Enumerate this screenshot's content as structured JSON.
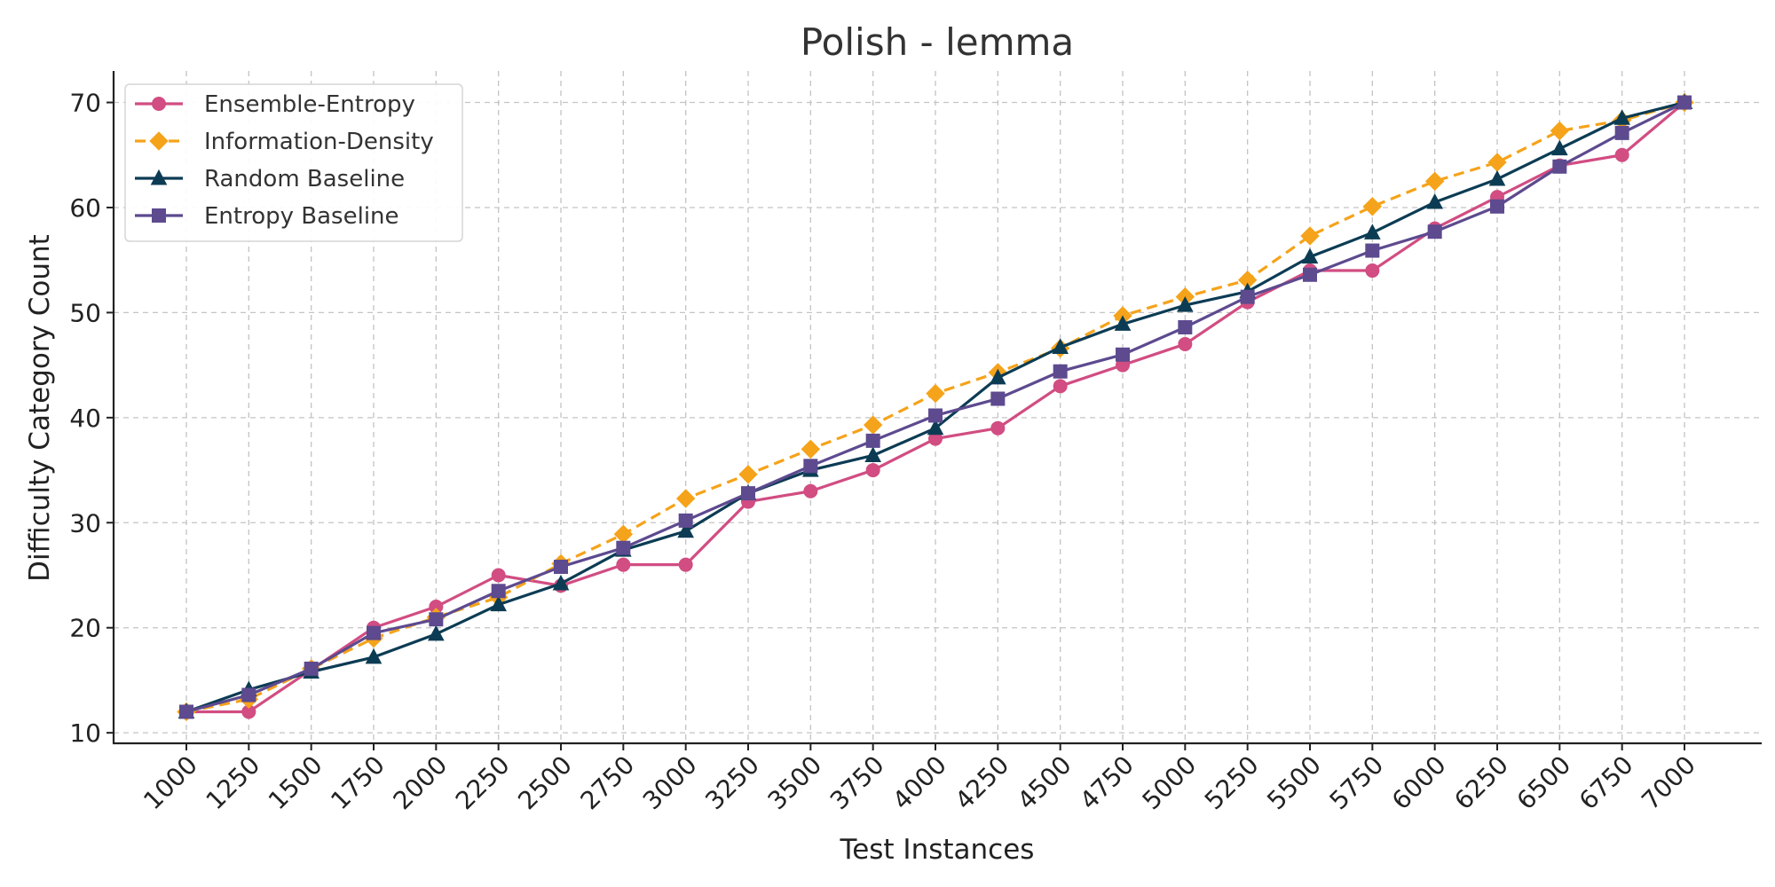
{
  "chart_data": {
    "type": "line",
    "title": "Polish - lemma",
    "xlabel": "Test Instances",
    "ylabel": "Difficulty Category Count",
    "x": [
      1000,
      1250,
      1500,
      1750,
      2000,
      2250,
      2500,
      2750,
      3000,
      3250,
      3500,
      3750,
      4000,
      4250,
      4500,
      4750,
      5000,
      5250,
      5500,
      5750,
      6000,
      6250,
      6500,
      6750,
      7000
    ],
    "x_tick_labels": [
      "1000",
      "1250",
      "1500",
      "1750",
      "2000",
      "2250",
      "2500",
      "2750",
      "3000",
      "3250",
      "3500",
      "3750",
      "4000",
      "4250",
      "4500",
      "4750",
      "5000",
      "5250",
      "5500",
      "5750",
      "6000",
      "6250",
      "6500",
      "6750",
      "7000"
    ],
    "y_ticks": [
      10,
      20,
      30,
      40,
      50,
      60,
      70
    ],
    "y_tick_labels": [
      "10",
      "20",
      "30",
      "40",
      "50",
      "60",
      "70"
    ],
    "ylim": [
      9,
      73
    ],
    "grid": true,
    "legend_position": "top-left",
    "series": [
      {
        "name": "Ensemble-Entropy",
        "color": "#d14d82",
        "marker": "circle",
        "line_style": "solid",
        "values": [
          12,
          12,
          16,
          20,
          22,
          25,
          24,
          26,
          26,
          32,
          33,
          35,
          38,
          39,
          43,
          45,
          47,
          51,
          54,
          54,
          58,
          61,
          64,
          65,
          70
        ]
      },
      {
        "name": "Information-Density",
        "color": "#f5a31a",
        "marker": "diamond",
        "line_style": "dashed",
        "values": [
          12,
          13.2,
          16.1,
          19,
          21,
          22.9,
          26.1,
          28.9,
          32.3,
          34.6,
          37,
          39.3,
          42.3,
          44.3,
          46.6,
          49.7,
          51.5,
          53.1,
          57.3,
          60.1,
          62.5,
          64.3,
          67.3,
          68.3,
          70
        ]
      },
      {
        "name": "Random Baseline",
        "color": "#0c3c54",
        "marker": "triangle",
        "line_style": "solid",
        "values": [
          12,
          14.1,
          15.8,
          17.2,
          19.4,
          22.2,
          24.2,
          27.4,
          29.2,
          32.8,
          35,
          36.4,
          39,
          43.8,
          46.7,
          48.9,
          50.7,
          52,
          55.3,
          57.6,
          60.5,
          62.7,
          65.6,
          68.5,
          70
        ]
      },
      {
        "name": "Entropy Baseline",
        "color": "#5d4a8f",
        "marker": "square",
        "line_style": "solid",
        "values": [
          12,
          13.6,
          16.1,
          19.5,
          20.8,
          23.5,
          25.8,
          27.6,
          30.2,
          32.8,
          35.4,
          37.8,
          40.2,
          41.8,
          44.4,
          46,
          48.6,
          51.5,
          53.6,
          55.9,
          57.7,
          60.1,
          63.9,
          67.1,
          70
        ]
      }
    ]
  }
}
